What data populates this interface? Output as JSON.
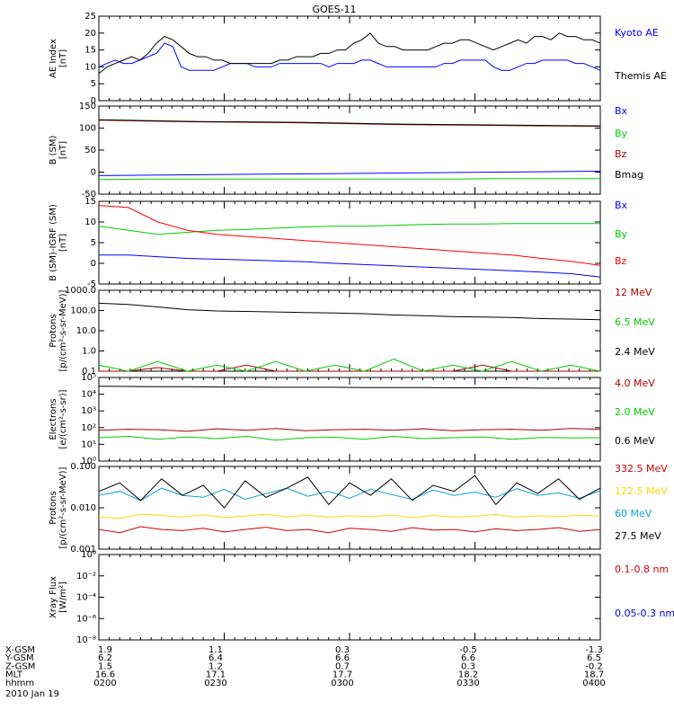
{
  "title": "GOES-11",
  "colors": {
    "black": "#000000",
    "blue": "#0000ff",
    "green": "#00cc00",
    "red": "#ff0000",
    "darkred": "#aa0000",
    "cyan": "#0aa0dc",
    "yellow": "#ffd700",
    "xred": "#cc0000",
    "xblue": "#0000dd"
  },
  "footer": {
    "rows": [
      {
        "label": "X-GSM",
        "values": [
          "1.9",
          "1.1",
          "0.3",
          "-0.5",
          "-1.3"
        ]
      },
      {
        "label": "Y-GSM",
        "values": [
          "6.2",
          "6.4",
          "6.6",
          "6.6",
          "6.5"
        ]
      },
      {
        "label": "Z-GSM",
        "values": [
          "1.5",
          "1.2",
          "0.7",
          "0.3",
          "-0.2"
        ]
      },
      {
        "label": "MLT",
        "values": [
          "16.6",
          "17.1",
          "17.7",
          "18.2",
          "18.7"
        ]
      },
      {
        "label": "hhmm",
        "values": [
          "0200",
          "0230",
          "0300",
          "0330",
          "0400"
        ]
      }
    ],
    "date": "2010 Jan 19"
  },
  "chart_data": [
    {
      "type": "line",
      "ylabel": "AE Index\n[nT]",
      "ylim": [
        0,
        25
      ],
      "ticks": [
        "0",
        "5",
        "10",
        "15",
        "20",
        "25"
      ],
      "series": [
        {
          "name": "Kyoto AE",
          "color": "blue",
          "values": [
            10,
            11,
            12,
            11,
            11,
            12,
            13,
            14,
            17,
            16,
            10,
            9,
            9,
            9,
            9,
            10,
            11,
            11,
            11,
            10,
            10,
            10,
            11,
            11,
            11,
            11,
            11,
            11,
            10,
            11,
            11,
            11,
            12,
            12,
            11,
            10,
            10,
            10,
            10,
            10,
            10,
            10,
            11,
            11,
            12,
            12,
            12,
            12,
            10,
            9,
            9,
            10,
            11,
            11,
            12,
            12,
            12,
            12,
            11,
            11,
            10,
            9
          ]
        },
        {
          "name": "Themis AE",
          "color": "black",
          "values": [
            8,
            10,
            11,
            12,
            13,
            12,
            14,
            17,
            19,
            18,
            16,
            14,
            13,
            13,
            12,
            12,
            11,
            11,
            11,
            11,
            11,
            11,
            12,
            12,
            13,
            13,
            13,
            14,
            14,
            15,
            15,
            17,
            18,
            20,
            17,
            16,
            16,
            15,
            15,
            15,
            15,
            16,
            17,
            17,
            18,
            18,
            17,
            16,
            15,
            16,
            17,
            18,
            17,
            19,
            19,
            18,
            20,
            19,
            19,
            18,
            18,
            17
          ]
        }
      ]
    },
    {
      "type": "line",
      "ylabel": "B (SM)\n[nT]",
      "ylim": [
        -50,
        150
      ],
      "ticks": [
        "-50",
        "0",
        "50",
        "100",
        "150"
      ],
      "series": [
        {
          "name": "Bx",
          "color": "blue",
          "values": [
            -8,
            -7,
            -6,
            -5,
            -4,
            -3,
            -2,
            -1,
            0,
            1,
            2
          ]
        },
        {
          "name": "By",
          "color": "green",
          "values": [
            -17,
            -16,
            -16,
            -16,
            -16,
            -16,
            -16,
            -16,
            -15,
            -15,
            -15
          ]
        },
        {
          "name": "Bz",
          "color": "darkred",
          "values": [
            118,
            116,
            114,
            113,
            112,
            110,
            108,
            107,
            106,
            105,
            104
          ]
        },
        {
          "name": "Bmag",
          "color": "black",
          "values": [
            119,
            117,
            115,
            114,
            113,
            111,
            109,
            108,
            107,
            106,
            105
          ]
        }
      ]
    },
    {
      "type": "line",
      "ylabel": "B (SM)-IGRF (SM)\n[nT]",
      "ylim": [
        -5,
        15
      ],
      "ticks": [
        "-5",
        "0",
        "5",
        "10",
        "15"
      ],
      "series": [
        {
          "name": "Bx",
          "color": "blue",
          "values": [
            2,
            2,
            1.6,
            1.2,
            1,
            0.8,
            0.6,
            0.4,
            0,
            -0.3,
            -0.6,
            -0.9,
            -1.2,
            -1.5,
            -1.8,
            -2.1,
            -2.5,
            -3.3
          ]
        },
        {
          "name": "By",
          "color": "green",
          "values": [
            9,
            8,
            7,
            7.5,
            8,
            8.2,
            8.5,
            8.8,
            9,
            9,
            9.2,
            9.4,
            9.5,
            9.5,
            9.6,
            9.6,
            9.6,
            9.6
          ]
        },
        {
          "name": "Bz",
          "color": "red",
          "values": [
            14,
            13.5,
            10,
            8,
            7,
            6.5,
            6,
            5.5,
            5,
            4.5,
            4,
            3.5,
            3,
            2.5,
            2,
            1.2,
            0.5,
            -0.5
          ]
        }
      ]
    },
    {
      "type": "line",
      "ylabel": "Protons\n[p/(cm²-s-sr-MeV)]",
      "yscale": "log",
      "ylim": [
        0.1,
        1000
      ],
      "ticks": [
        "0.1",
        "1.0",
        "10.0",
        "100.0",
        "1000.0"
      ],
      "series": [
        {
          "name": "12 MeV",
          "color": "darkred",
          "values": [
            0.1,
            0.1,
            0.15,
            0.1,
            0.1,
            0.2,
            0.1,
            0.1,
            0.1,
            0.1,
            0.1,
            0.1,
            0.1,
            0.2,
            0.1,
            0.1,
            0.1,
            0.1
          ]
        },
        {
          "name": "6.5 MeV",
          "color": "green",
          "values": [
            0.2,
            0.1,
            0.3,
            0.1,
            0.2,
            0.1,
            0.3,
            0.1,
            0.2,
            0.1,
            0.4,
            0.1,
            0.2,
            0.1,
            0.3,
            0.1,
            0.2,
            0.1
          ]
        },
        {
          "name": "2.4 MeV",
          "color": "black",
          "values": [
            230,
            200,
            150,
            110,
            95,
            90,
            85,
            80,
            75,
            70,
            60,
            55,
            50,
            48,
            45,
            40,
            38,
            35
          ]
        }
      ]
    },
    {
      "type": "line",
      "ylabel": "Electrons\n[e/(cm²-s-sr)]",
      "yscale": "log",
      "ylim": [
        1,
        100000
      ],
      "ticks": [
        "10⁰",
        "10¹",
        "10²",
        "10³",
        "10⁴",
        "10⁵"
      ],
      "series": [
        {
          "name": "4.0 MeV",
          "color": "darkred",
          "values": [
            70,
            80,
            75,
            60,
            85,
            70,
            90,
            65,
            75,
            80,
            70,
            85,
            65,
            75,
            80,
            70,
            90,
            80
          ]
        },
        {
          "name": "2.0 MeV",
          "color": "green",
          "values": [
            25,
            30,
            20,
            28,
            22,
            30,
            18,
            25,
            27,
            20,
            30,
            22,
            25,
            28,
            20,
            26,
            24,
            25
          ]
        },
        {
          "name": "0.6 MeV",
          "color": "black",
          "values": [
            30000,
            29000,
            28000,
            28000,
            27000,
            27000,
            26000,
            26000,
            26000,
            25000,
            25000,
            25000,
            24000,
            24000,
            24000,
            23000,
            23000,
            23000
          ]
        }
      ]
    },
    {
      "type": "line",
      "ylabel": "Protons\n[p/(cm²-s-sr-MeV)]",
      "yscale": "log",
      "ylim": [
        0.001,
        0.1
      ],
      "ticks": [
        "0.001",
        "0.010",
        "0.100"
      ],
      "series": [
        {
          "name": "332.5 MeV",
          "color": "xred",
          "values": [
            0.003,
            0.0025,
            0.0035,
            0.003,
            0.0028,
            0.0032,
            0.0026,
            0.003,
            0.0034,
            0.0028,
            0.003,
            0.0025,
            0.0032,
            0.003,
            0.0027,
            0.0033,
            0.0029,
            0.003,
            0.0026,
            0.0031,
            0.0028,
            0.003,
            0.0033,
            0.0027,
            0.003
          ]
        },
        {
          "name": "122.5 MeV",
          "color": "yellow",
          "values": [
            0.006,
            0.0055,
            0.007,
            0.0065,
            0.006,
            0.0068,
            0.0058,
            0.0063,
            0.007,
            0.006,
            0.0066,
            0.0059,
            0.0064,
            0.0061,
            0.0067,
            0.0058,
            0.0065,
            0.006,
            0.0062,
            0.0069,
            0.0059,
            0.0064,
            0.0061,
            0.0066,
            0.0063
          ]
        },
        {
          "name": "60 MeV",
          "color": "cyan",
          "values": [
            0.02,
            0.025,
            0.015,
            0.03,
            0.02,
            0.018,
            0.028,
            0.016,
            0.022,
            0.03,
            0.019,
            0.025,
            0.017,
            0.028,
            0.021,
            0.016,
            0.027,
            0.02,
            0.024,
            0.018,
            0.029,
            0.02,
            0.023,
            0.017,
            0.026
          ]
        },
        {
          "name": "27.5 MeV",
          "color": "black",
          "values": [
            0.025,
            0.04,
            0.015,
            0.05,
            0.02,
            0.035,
            0.01,
            0.045,
            0.018,
            0.03,
            0.055,
            0.012,
            0.04,
            0.02,
            0.05,
            0.015,
            0.035,
            0.025,
            0.06,
            0.012,
            0.04,
            0.022,
            0.05,
            0.016,
            0.03
          ]
        }
      ]
    },
    {
      "type": "line",
      "ylabel": "Xray Flux\n[W/m²]",
      "yscale": "log",
      "ylim": [
        1e-09,
        1
      ],
      "ticks": [
        "10⁻⁸",
        "10⁻⁶",
        "10⁻⁴",
        "10⁻²",
        "10⁰"
      ],
      "series": [
        {
          "name": "0.1-0.8 nm",
          "color": "xred",
          "values": []
        },
        {
          "name": "0.05-0.3 nm",
          "color": "xblue",
          "values": []
        }
      ]
    }
  ]
}
